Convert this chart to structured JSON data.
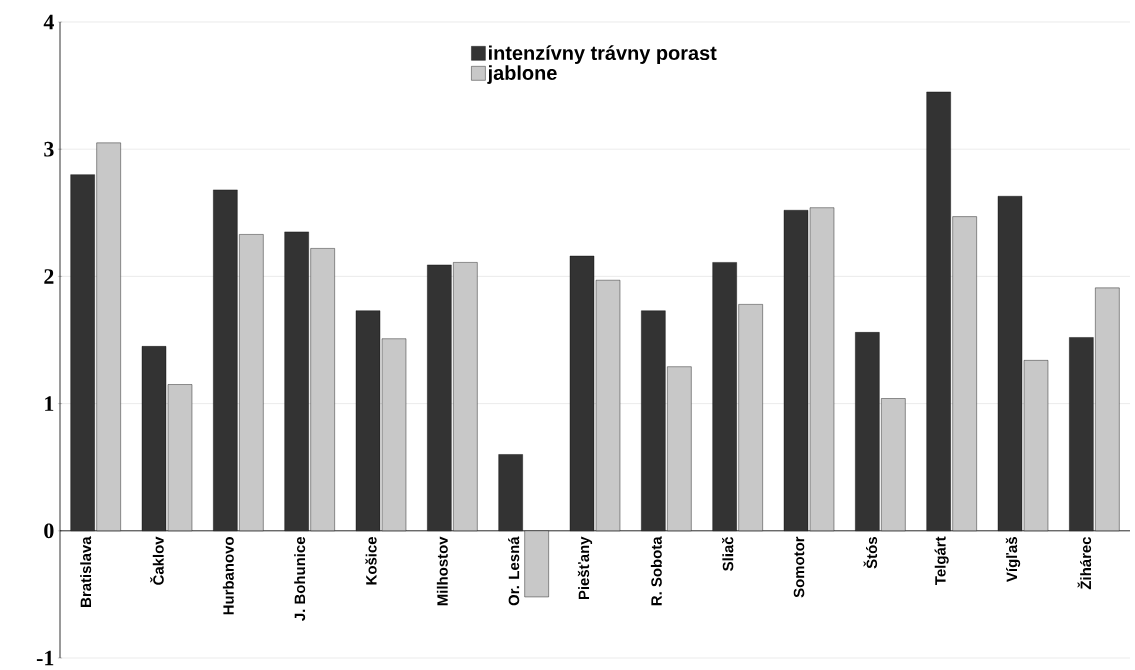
{
  "chart_data": {
    "type": "bar",
    "categories": [
      "Bratislava",
      "Čaklov",
      "Hurbanovo",
      "J. Bohunice",
      "Košice",
      "Milhostov",
      "Or. Lesná",
      "Piešťany",
      "R. Sobota",
      "Sliač",
      "Somotor",
      "Štós",
      "Telgárt",
      "Vígľaš",
      "Žihárec"
    ],
    "series": [
      {
        "name": "intenzívny trávny porast",
        "color": "#333333",
        "values": [
          2.8,
          1.45,
          2.68,
          2.35,
          1.73,
          2.09,
          0.6,
          2.16,
          1.73,
          2.11,
          2.52,
          1.56,
          3.45,
          2.63,
          1.52
        ]
      },
      {
        "name": "jablone",
        "color": "#c8c8c8",
        "values": [
          3.05,
          1.15,
          2.33,
          2.22,
          1.51,
          2.11,
          -0.52,
          1.97,
          1.29,
          1.78,
          2.54,
          1.04,
          2.47,
          1.34,
          1.91
        ]
      }
    ],
    "ylim": [
      -1,
      4
    ],
    "yticks": [
      -1,
      0,
      1,
      2,
      3,
      4
    ],
    "grid": "y",
    "legend": "top"
  }
}
